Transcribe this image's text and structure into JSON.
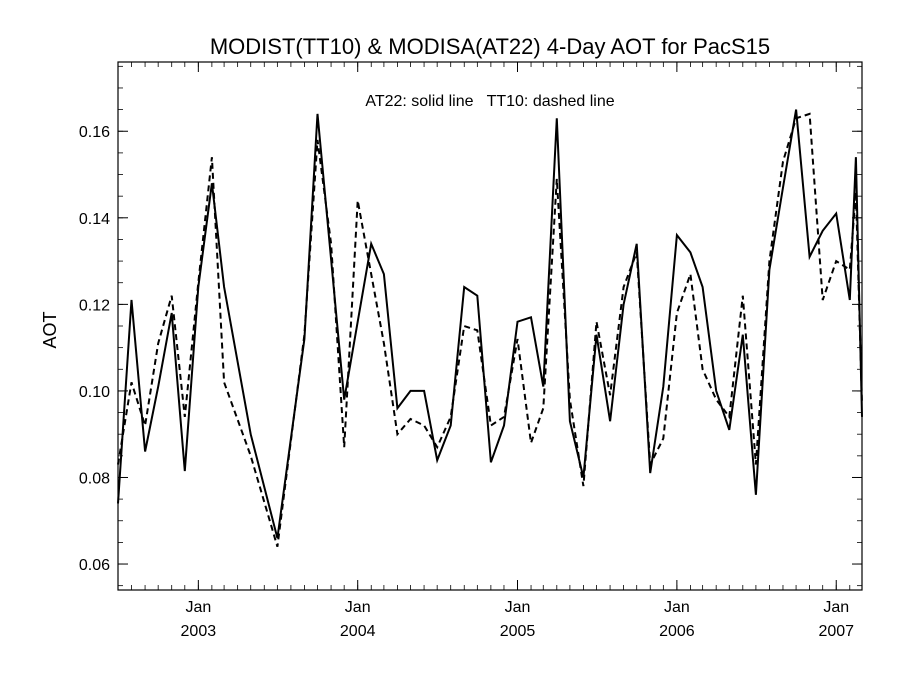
{
  "chart_data": {
    "type": "line",
    "title": "MODIST(TT10) & MODISA(AT22) 4-Day AOT for PacS15",
    "annotation": "AT22: solid line   TT10: dashed line",
    "ylabel": "AOT",
    "xlabel": "",
    "xlim": [
      "2002-07-01",
      "2007-03-01"
    ],
    "ylim": [
      0.054,
      0.176
    ],
    "yticks": [
      0.06,
      0.08,
      0.1,
      0.12,
      0.14,
      0.16
    ],
    "ytick_labels": [
      "0.06",
      "0.08",
      "0.10",
      "0.12",
      "0.14",
      "0.16"
    ],
    "xticks": [
      {
        "date": "2003-01-01",
        "month": "Jan",
        "year": "2003"
      },
      {
        "date": "2004-01-01",
        "month": "Jan",
        "year": "2004"
      },
      {
        "date": "2005-01-01",
        "month": "Jan",
        "year": "2005"
      },
      {
        "date": "2006-01-01",
        "month": "Jan",
        "year": "2006"
      },
      {
        "date": "2007-01-01",
        "month": "Jan",
        "year": "2007"
      }
    ],
    "series": [
      {
        "name": "AT22",
        "style": "solid",
        "color": "#000000",
        "points": [
          [
            "2002-07-01",
            0.074
          ],
          [
            "2002-08-01",
            0.121
          ],
          [
            "2002-09-01",
            0.086
          ],
          [
            "2002-10-01",
            0.101
          ],
          [
            "2002-11-01",
            0.118
          ],
          [
            "2002-12-01",
            0.0815
          ],
          [
            "2003-01-01",
            0.124
          ],
          [
            "2003-02-01",
            0.148
          ],
          [
            "2003-03-01",
            0.124
          ],
          [
            "2003-05-01",
            0.09
          ],
          [
            "2003-07-01",
            0.066
          ],
          [
            "2003-09-01",
            0.112
          ],
          [
            "2003-10-01",
            0.164
          ],
          [
            "2003-12-01",
            0.098
          ],
          [
            "2004-02-01",
            0.134
          ],
          [
            "2004-03-01",
            0.127
          ],
          [
            "2004-04-01",
            0.096
          ],
          [
            "2004-05-01",
            0.1
          ],
          [
            "2004-06-01",
            0.1
          ],
          [
            "2004-07-01",
            0.084
          ],
          [
            "2004-08-01",
            0.092
          ],
          [
            "2004-09-01",
            0.124
          ],
          [
            "2004-10-01",
            0.122
          ],
          [
            "2004-11-01",
            0.0835
          ],
          [
            "2004-12-01",
            0.092
          ],
          [
            "2005-01-01",
            0.116
          ],
          [
            "2005-02-01",
            0.117
          ],
          [
            "2005-03-01",
            0.101
          ],
          [
            "2005-04-01",
            0.163
          ],
          [
            "2005-05-01",
            0.093
          ],
          [
            "2005-06-01",
            0.08
          ],
          [
            "2005-07-01",
            0.113
          ],
          [
            "2005-08-01",
            0.093
          ],
          [
            "2005-09-01",
            0.12
          ],
          [
            "2005-10-01",
            0.134
          ],
          [
            "2005-11-01",
            0.081
          ],
          [
            "2005-12-01",
            0.101
          ],
          [
            "2006-01-01",
            0.136
          ],
          [
            "2006-02-01",
            0.132
          ],
          [
            "2006-03-01",
            0.124
          ],
          [
            "2006-04-01",
            0.1
          ],
          [
            "2006-05-01",
            0.091
          ],
          [
            "2006-06-01",
            0.113
          ],
          [
            "2006-07-01",
            0.076
          ],
          [
            "2006-08-01",
            0.128
          ],
          [
            "2006-09-01",
            0.147
          ],
          [
            "2006-10-01",
            0.165
          ],
          [
            "2006-11-01",
            0.131
          ],
          [
            "2006-12-01",
            0.137
          ],
          [
            "2007-01-01",
            0.141
          ],
          [
            "2007-02-01",
            0.121
          ],
          [
            "2007-02-15",
            0.154
          ],
          [
            "2007-03-01",
            0.094
          ]
        ]
      },
      {
        "name": "TT10",
        "style": "dashed",
        "color": "#000000",
        "points": [
          [
            "2002-07-01",
            0.083
          ],
          [
            "2002-08-01",
            0.102
          ],
          [
            "2002-09-01",
            0.092
          ],
          [
            "2002-10-01",
            0.111
          ],
          [
            "2002-11-01",
            0.122
          ],
          [
            "2002-12-01",
            0.094
          ],
          [
            "2003-01-01",
            0.125
          ],
          [
            "2003-02-01",
            0.154
          ],
          [
            "2003-03-01",
            0.102
          ],
          [
            "2003-05-01",
            0.085
          ],
          [
            "2003-07-01",
            0.064
          ],
          [
            "2003-09-01",
            0.113
          ],
          [
            "2003-10-01",
            0.158
          ],
          [
            "2003-11-01",
            0.134
          ],
          [
            "2003-12-01",
            0.087
          ],
          [
            "2004-01-01",
            0.144
          ],
          [
            "2004-02-01",
            0.127
          ],
          [
            "2004-03-01",
            0.111
          ],
          [
            "2004-04-01",
            0.09
          ],
          [
            "2004-05-01",
            0.0935
          ],
          [
            "2004-06-01",
            0.092
          ],
          [
            "2004-07-01",
            0.087
          ],
          [
            "2004-08-01",
            0.094
          ],
          [
            "2004-09-01",
            0.115
          ],
          [
            "2004-10-01",
            0.114
          ],
          [
            "2004-11-01",
            0.092
          ],
          [
            "2004-12-01",
            0.094
          ],
          [
            "2005-01-01",
            0.112
          ],
          [
            "2005-02-01",
            0.088
          ],
          [
            "2005-03-01",
            0.096
          ],
          [
            "2005-04-01",
            0.149
          ],
          [
            "2005-05-01",
            0.098
          ],
          [
            "2005-06-01",
            0.078
          ],
          [
            "2005-07-01",
            0.116
          ],
          [
            "2005-08-01",
            0.099
          ],
          [
            "2005-09-01",
            0.124
          ],
          [
            "2005-10-01",
            0.132
          ],
          [
            "2005-11-01",
            0.083
          ],
          [
            "2005-12-01",
            0.089
          ],
          [
            "2006-01-01",
            0.118
          ],
          [
            "2006-02-01",
            0.127
          ],
          [
            "2006-03-01",
            0.105
          ],
          [
            "2006-04-01",
            0.098
          ],
          [
            "2006-05-01",
            0.094
          ],
          [
            "2006-06-01",
            0.122
          ],
          [
            "2006-07-01",
            0.083
          ],
          [
            "2006-08-01",
            0.13
          ],
          [
            "2006-09-01",
            0.153
          ],
          [
            "2006-10-01",
            0.163
          ],
          [
            "2006-11-01",
            0.164
          ],
          [
            "2006-12-01",
            0.121
          ],
          [
            "2007-01-01",
            0.13
          ],
          [
            "2007-02-01",
            0.128
          ],
          [
            "2007-02-15",
            0.146
          ],
          [
            "2007-03-01",
            0.097
          ]
        ]
      }
    ],
    "grid": false,
    "legend": "top-center (as text annotation)"
  }
}
